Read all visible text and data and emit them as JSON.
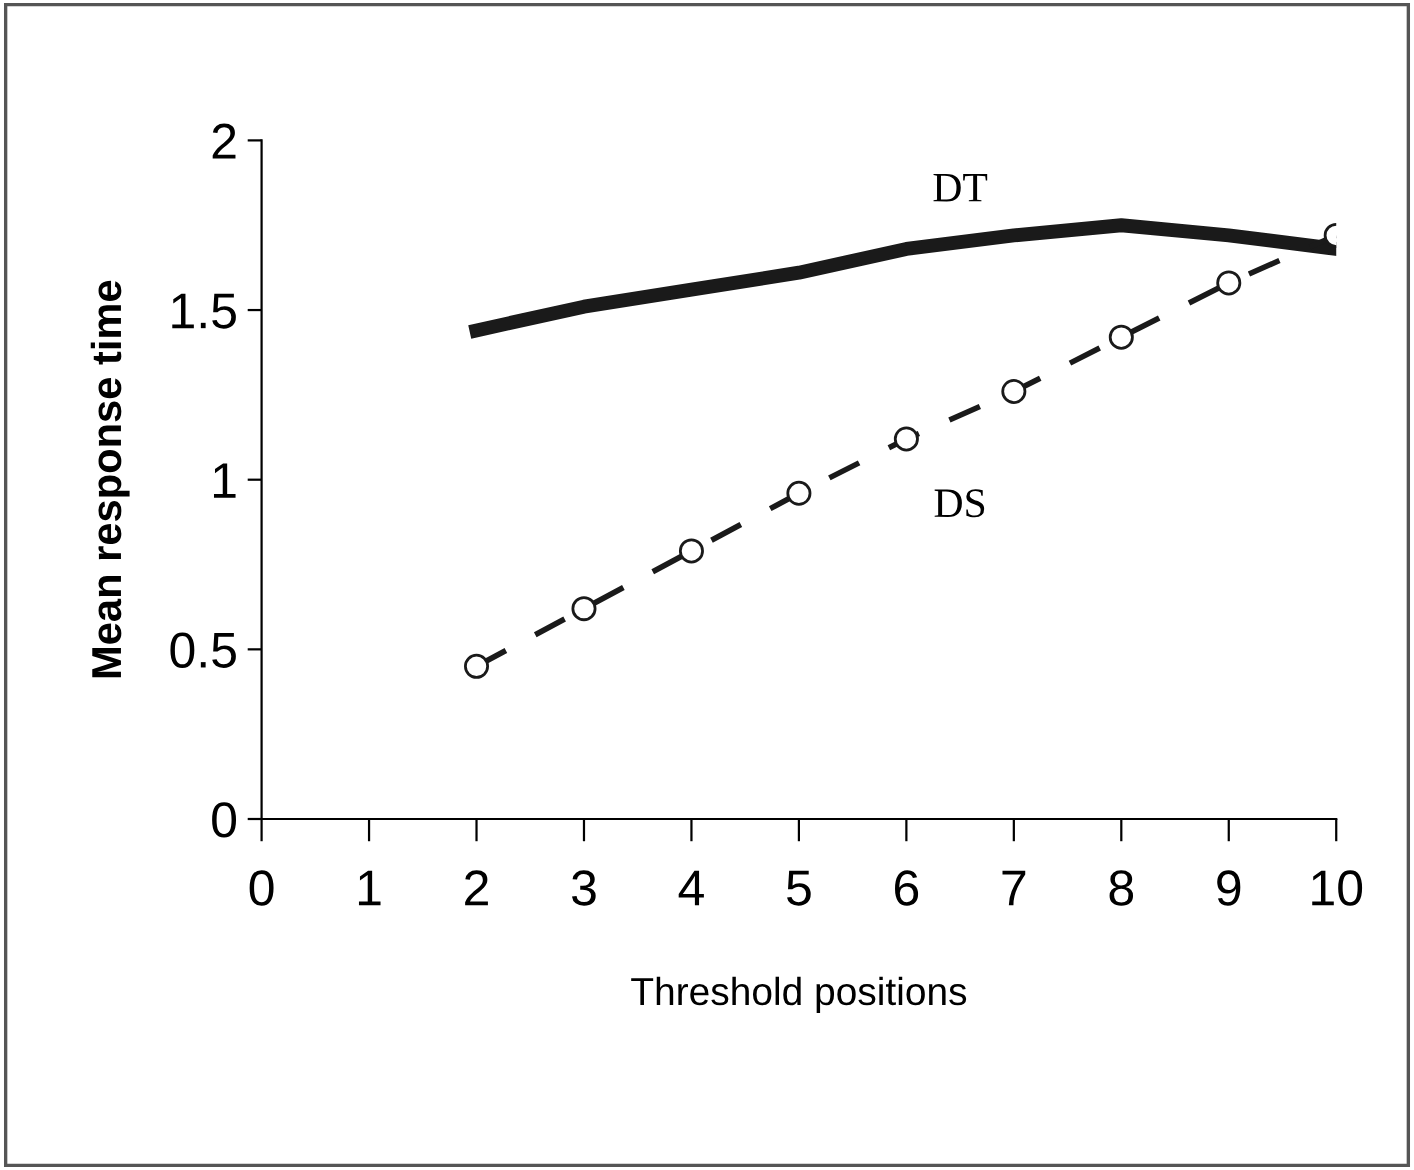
{
  "chart_data": {
    "type": "line",
    "xlabel": "Threshold positions",
    "ylabel": "Mean response time",
    "xlim": [
      0,
      10
    ],
    "xticks": [
      0,
      1,
      2,
      3,
      4,
      5,
      6,
      7,
      8,
      9,
      10
    ],
    "ylim": [
      0,
      2
    ],
    "yticks": [
      0,
      0.5,
      1,
      1.5,
      2
    ],
    "grid": false,
    "legend": false,
    "series": [
      {
        "name": "DT",
        "color": "#1a1a1a",
        "line_style": "solid",
        "marker": "none",
        "x": [
          2,
          3,
          4,
          5,
          6,
          7,
          8,
          9,
          10
        ],
        "values": [
          1.44,
          1.51,
          1.56,
          1.61,
          1.68,
          1.72,
          1.75,
          1.72,
          1.68
        ]
      },
      {
        "name": "DS",
        "color": "#1a1a1a",
        "line_style": "dashed",
        "marker": "circle",
        "x": [
          2,
          3,
          4,
          5,
          6,
          7,
          8,
          9,
          10
        ],
        "values": [
          0.45,
          0.62,
          0.79,
          0.96,
          1.12,
          1.26,
          1.42,
          1.58,
          1.72
        ]
      }
    ]
  }
}
